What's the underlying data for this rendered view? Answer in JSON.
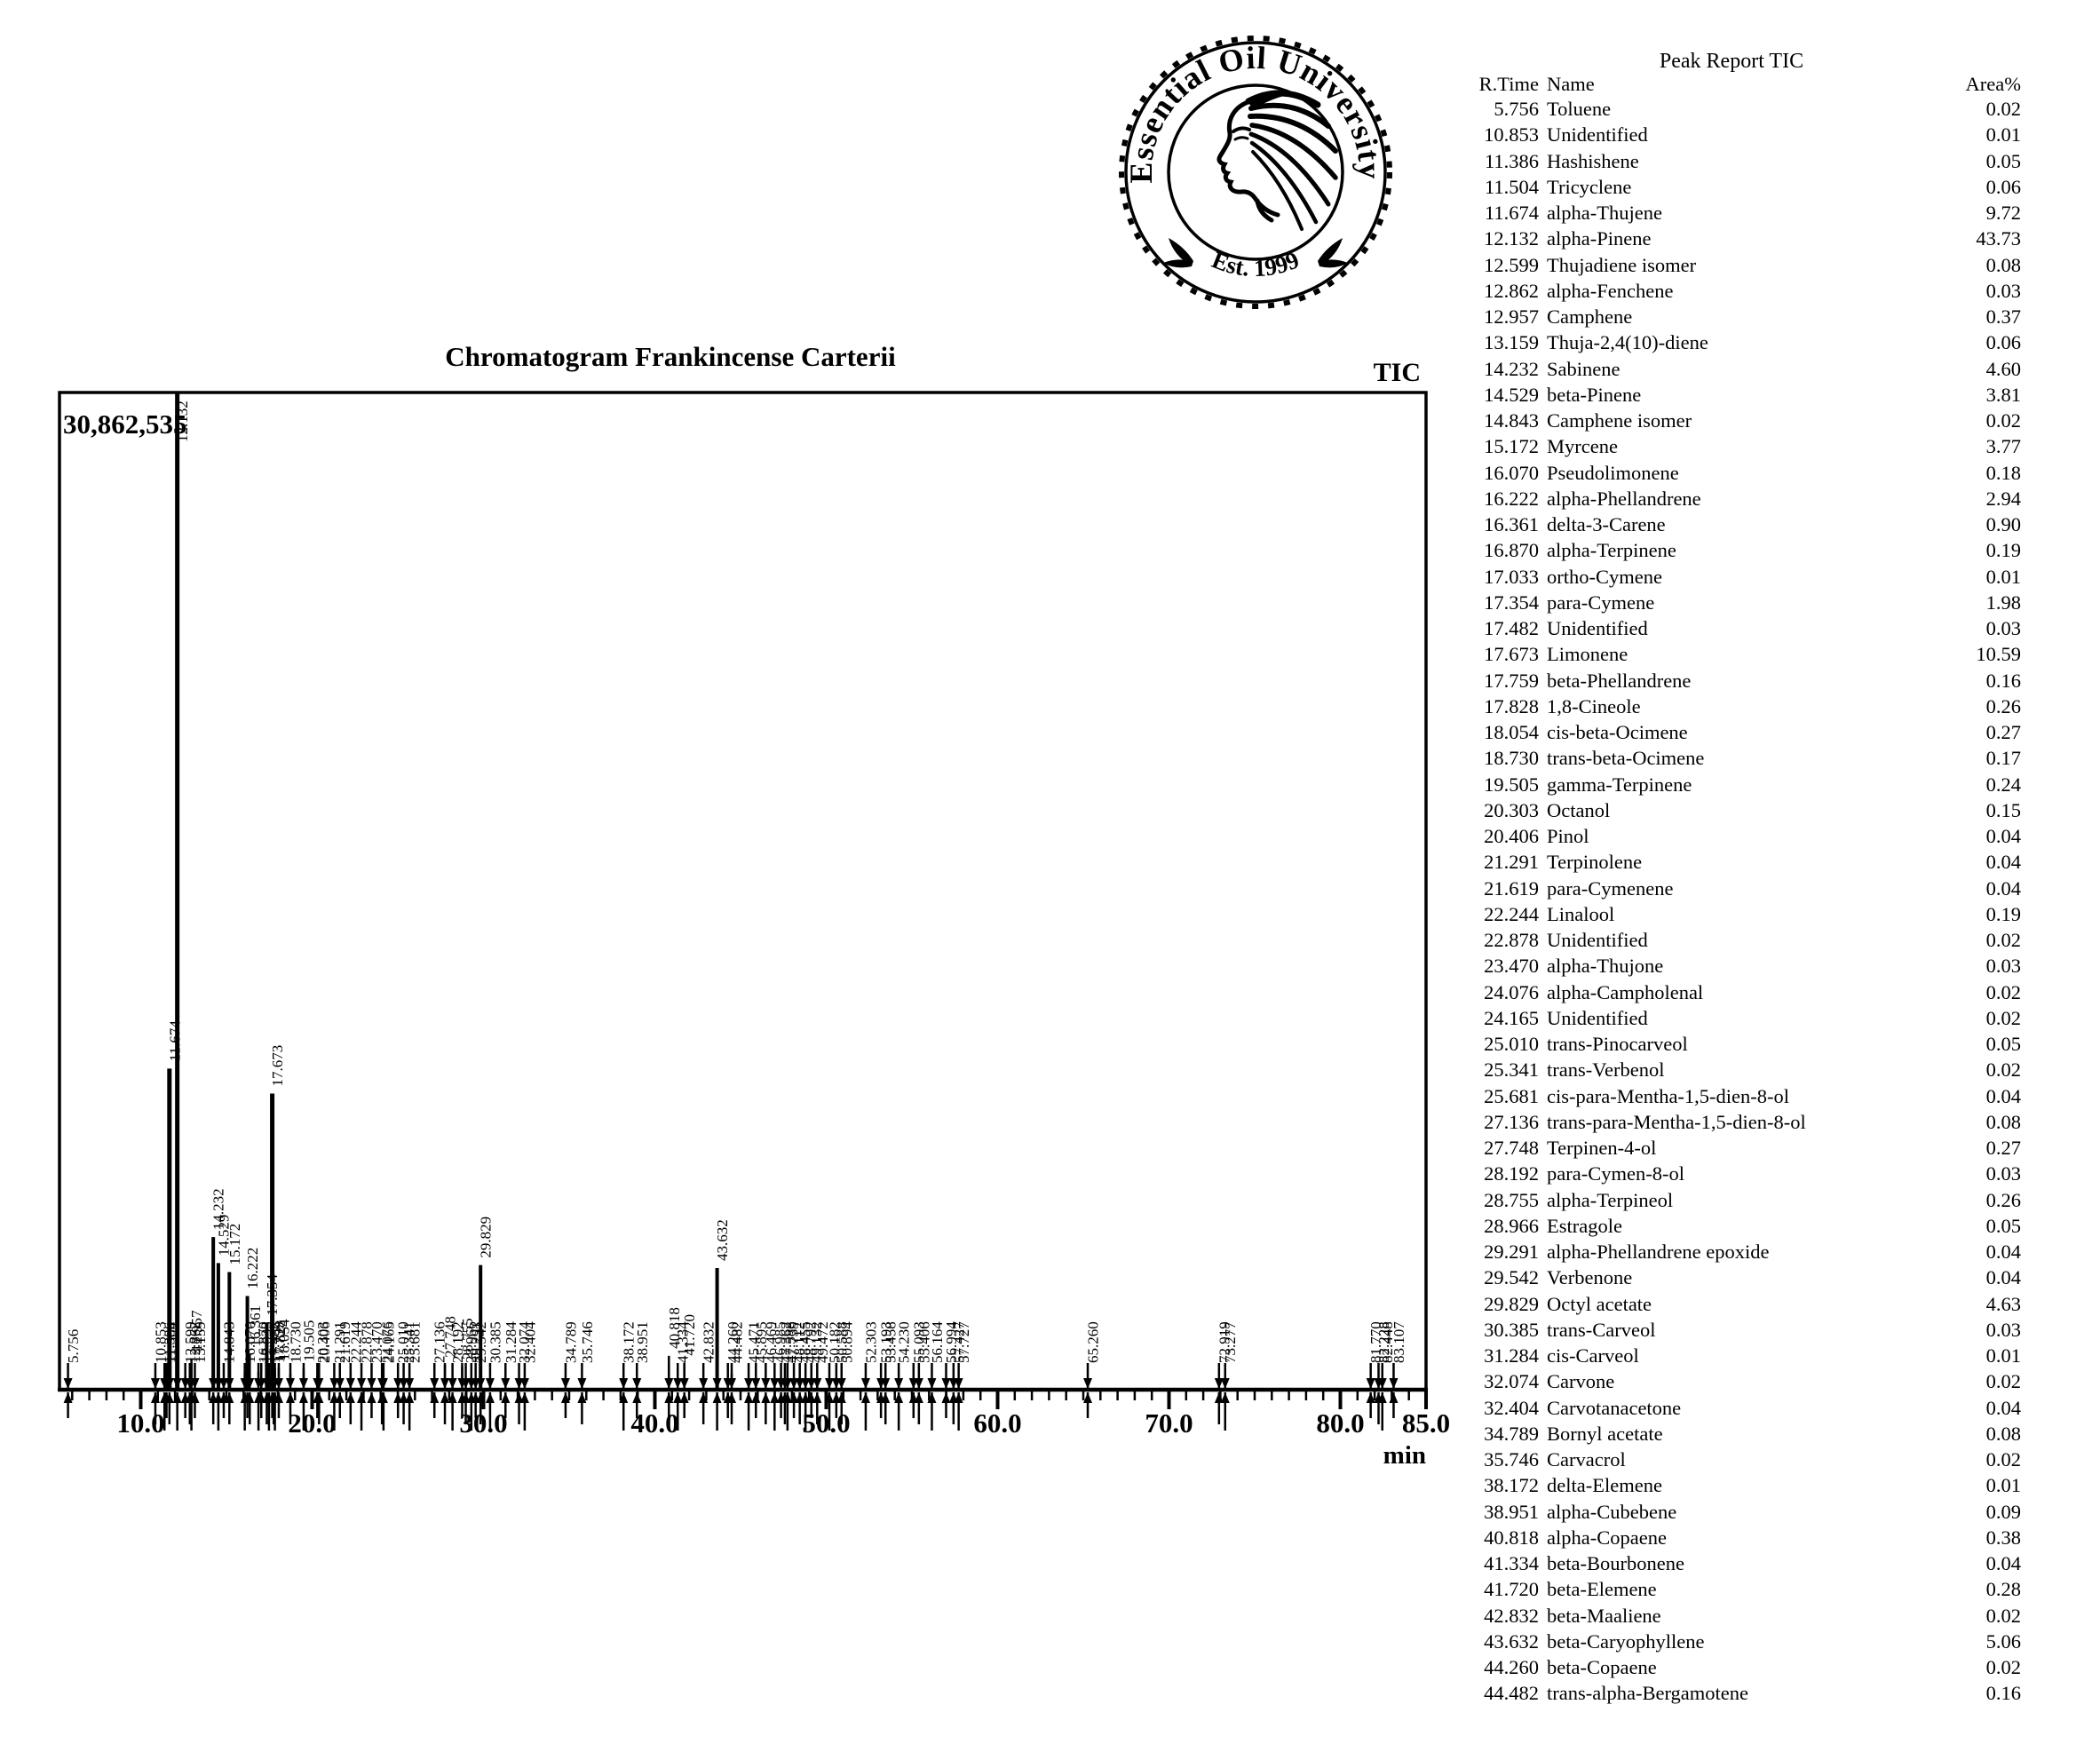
{
  "logo": {
    "ring_text": "Essential Oil University",
    "est_text": "Est. 1999"
  },
  "chart": {
    "title": "Chromatogram Frankincense Carterii",
    "series_label": "TIC"
  },
  "chart_data": {
    "type": "line",
    "title": "Chromatogram Frankincense Carterii",
    "series_label": "TIC",
    "xlabel": "min",
    "x_range": [
      5.26,
      85.0
    ],
    "x_major_ticks": [
      10,
      20,
      30,
      40,
      50,
      60,
      70,
      80,
      85
    ],
    "x_tick_labels": [
      "10.0",
      "20.0",
      "30.0",
      "40.0",
      "50.0",
      "60.0",
      "70.0",
      "80.0",
      "85.0"
    ],
    "y_max": 30862535,
    "y_max_label": "30,862,535",
    "grid": false,
    "peaks": [
      {
        "t": "5.756",
        "f": 0.007
      },
      {
        "t": "10.853",
        "f": 0.004
      },
      {
        "t": "11.386",
        "f": 0.009
      },
      {
        "t": "11.504",
        "f": 0.011
      },
      {
        "t": "11.674",
        "f": 0.322
      },
      {
        "t": "12.132",
        "f": 1.0
      },
      {
        "t": "12.599",
        "f": 0.013
      },
      {
        "t": "12.862",
        "f": 0.007
      },
      {
        "t": "12.957",
        "f": 0.031
      },
      {
        "t": "13.159",
        "f": 0.011
      },
      {
        "t": "14.232",
        "f": 0.153
      },
      {
        "t": "14.529",
        "f": 0.127
      },
      {
        "t": "14.843",
        "f": 0.006
      },
      {
        "t": "15.172",
        "f": 0.118
      },
      {
        "t": "16.070",
        "f": 0.018
      },
      {
        "t": "16.222",
        "f": 0.094
      },
      {
        "t": "16.361",
        "f": 0.036
      },
      {
        "t": "16.870",
        "f": 0.018
      },
      {
        "t": "17.033",
        "f": 0.005
      },
      {
        "t": "17.354",
        "f": 0.067
      },
      {
        "t": "17.482",
        "f": 0.007
      },
      {
        "t": "17.673",
        "f": 0.297
      },
      {
        "t": "17.759",
        "f": 0.016
      },
      {
        "t": "17.828",
        "f": 0.021
      },
      {
        "t": "18.054",
        "f": 0.022
      },
      {
        "t": "18.730",
        "f": 0.016
      },
      {
        "t": "19.505",
        "f": 0.021
      },
      {
        "t": "20.303",
        "f": 0.014
      },
      {
        "t": "20.406",
        "f": 0.007
      },
      {
        "t": "21.291",
        "f": 0.007
      },
      {
        "t": "21.619",
        "f": 0.007
      },
      {
        "t": "22.244",
        "f": 0.017
      },
      {
        "t": "22.878",
        "f": 0.005
      },
      {
        "t": "23.470",
        "f": 0.007
      },
      {
        "t": "24.076",
        "f": 0.005
      },
      {
        "t": "24.165",
        "f": 0.005
      },
      {
        "t": "25.010",
        "f": 0.009
      },
      {
        "t": "25.341",
        "f": 0.005
      },
      {
        "t": "25.681",
        "f": 0.007
      },
      {
        "t": "27.136",
        "f": 0.011
      },
      {
        "t": "27.748",
        "f": 0.025
      },
      {
        "t": "28.192",
        "f": 0.007
      },
      {
        "t": "28.755",
        "f": 0.023
      },
      {
        "t": "28.966",
        "f": 0.009
      },
      {
        "t": "29.291",
        "f": 0.007
      },
      {
        "t": "29.542",
        "f": 0.007
      },
      {
        "t": "29.829",
        "f": 0.125
      },
      {
        "t": "30.385",
        "f": 0.007
      },
      {
        "t": "31.284",
        "f": 0.004
      },
      {
        "t": "32.074",
        "f": 0.005
      },
      {
        "t": "32.404",
        "f": 0.007
      },
      {
        "t": "34.789",
        "f": 0.011
      },
      {
        "t": "35.746",
        "f": 0.007
      },
      {
        "t": "38.172",
        "f": 0.004
      },
      {
        "t": "38.951",
        "f": 0.012
      },
      {
        "t": "40.818",
        "f": 0.034
      },
      {
        "t": "41.334",
        "f": 0.007
      },
      {
        "t": "41.720",
        "f": 0.027
      },
      {
        "t": "42.832",
        "f": 0.005
      },
      {
        "t": "43.632",
        "f": 0.122
      },
      {
        "t": "44.260",
        "f": 0.007
      },
      {
        "t": "44.482",
        "f": 0.016
      },
      {
        "t": "45.471",
        "f": 0.009
      },
      {
        "t": "45.895",
        "f": 0.007
      },
      {
        "t": "46.469",
        "f": 0.007
      },
      {
        "t": "46.985",
        "f": 0.009
      },
      {
        "t": "47.362",
        "f": 0.01
      },
      {
        "t": "47.588",
        "f": 0.007
      },
      {
        "t": "47.739",
        "f": 0.009
      },
      {
        "t": "48.112",
        "f": 0.007
      },
      {
        "t": "48.455",
        "f": 0.009
      },
      {
        "t": "48.792",
        "f": 0.007
      },
      {
        "t": "49.132",
        "f": 0.008
      },
      {
        "t": "49.472",
        "f": 0.007
      },
      {
        "t": "50.182",
        "f": 0.007
      },
      {
        "t": "50.588",
        "f": 0.008
      },
      {
        "t": "50.894",
        "f": 0.007
      },
      {
        "t": "52.303",
        "f": 0.007
      },
      {
        "t": "53.193",
        "f": 0.007
      },
      {
        "t": "53.458",
        "f": 0.007
      },
      {
        "t": "54.230",
        "f": 0.007
      },
      {
        "t": "55.093",
        "f": 0.007
      },
      {
        "t": "55.406",
        "f": 0.007
      },
      {
        "t": "56.164",
        "f": 0.007
      },
      {
        "t": "56.994",
        "f": 0.007
      },
      {
        "t": "57.427",
        "f": 0.008
      },
      {
        "t": "57.727",
        "f": 0.007
      },
      {
        "t": "65.260",
        "f": 0.009
      },
      {
        "t": "72.919",
        "f": 0.011
      },
      {
        "t": "73.277",
        "f": 0.007
      },
      {
        "t": "81.770",
        "f": 0.008
      },
      {
        "t": "82.228",
        "f": 0.01
      },
      {
        "t": "82.448",
        "f": 0.007
      },
      {
        "t": "83.107",
        "f": 0.007
      }
    ]
  },
  "report": {
    "title": "Peak Report TIC",
    "columns": [
      "R.Time",
      "Name",
      "Area%"
    ],
    "rows": [
      [
        "5.756",
        "Toluene",
        "0.02"
      ],
      [
        "10.853",
        "Unidentified",
        "0.01"
      ],
      [
        "11.386",
        "Hashishene",
        "0.05"
      ],
      [
        "11.504",
        "Tricyclene",
        "0.06"
      ],
      [
        "11.674",
        "alpha-Thujene",
        "9.72"
      ],
      [
        "12.132",
        "alpha-Pinene",
        "43.73"
      ],
      [
        "12.599",
        "Thujadiene isomer",
        "0.08"
      ],
      [
        "12.862",
        "alpha-Fenchene",
        "0.03"
      ],
      [
        "12.957",
        "Camphene",
        "0.37"
      ],
      [
        "13.159",
        "Thuja-2,4(10)-diene",
        "0.06"
      ],
      [
        "14.232",
        "Sabinene",
        "4.60"
      ],
      [
        "14.529",
        "beta-Pinene",
        "3.81"
      ],
      [
        "14.843",
        "Camphene isomer",
        "0.02"
      ],
      [
        "15.172",
        "Myrcene",
        "3.77"
      ],
      [
        "16.070",
        "Pseudolimonene",
        "0.18"
      ],
      [
        "16.222",
        "alpha-Phellandrene",
        "2.94"
      ],
      [
        "16.361",
        "delta-3-Carene",
        "0.90"
      ],
      [
        "16.870",
        "alpha-Terpinene",
        "0.19"
      ],
      [
        "17.033",
        "ortho-Cymene",
        "0.01"
      ],
      [
        "17.354",
        "para-Cymene",
        "1.98"
      ],
      [
        "17.482",
        "Unidentified",
        "0.03"
      ],
      [
        "17.673",
        "Limonene",
        "10.59"
      ],
      [
        "17.759",
        "beta-Phellandrene",
        "0.16"
      ],
      [
        "17.828",
        "1,8-Cineole",
        "0.26"
      ],
      [
        "18.054",
        "cis-beta-Ocimene",
        "0.27"
      ],
      [
        "18.730",
        "trans-beta-Ocimene",
        "0.17"
      ],
      [
        "19.505",
        "gamma-Terpinene",
        "0.24"
      ],
      [
        "20.303",
        "Octanol",
        "0.15"
      ],
      [
        "20.406",
        "Pinol",
        "0.04"
      ],
      [
        "21.291",
        "Terpinolene",
        "0.04"
      ],
      [
        "21.619",
        "para-Cymenene",
        "0.04"
      ],
      [
        "22.244",
        "Linalool",
        "0.19"
      ],
      [
        "22.878",
        "Unidentified",
        "0.02"
      ],
      [
        "23.470",
        "alpha-Thujone",
        "0.03"
      ],
      [
        "24.076",
        "alpha-Campholenal",
        "0.02"
      ],
      [
        "24.165",
        "Unidentified",
        "0.02"
      ],
      [
        "25.010",
        "trans-Pinocarveol",
        "0.05"
      ],
      [
        "25.341",
        "trans-Verbenol",
        "0.02"
      ],
      [
        "25.681",
        "cis-para-Mentha-1,5-dien-8-ol",
        "0.04"
      ],
      [
        "27.136",
        "trans-para-Mentha-1,5-dien-8-ol",
        "0.08"
      ],
      [
        "27.748",
        "Terpinen-4-ol",
        "0.27"
      ],
      [
        "28.192",
        "para-Cymen-8-ol",
        "0.03"
      ],
      [
        "28.755",
        "alpha-Terpineol",
        "0.26"
      ],
      [
        "28.966",
        "Estragole",
        "0.05"
      ],
      [
        "29.291",
        "alpha-Phellandrene epoxide",
        "0.04"
      ],
      [
        "29.542",
        "Verbenone",
        "0.04"
      ],
      [
        "29.829",
        "Octyl acetate",
        "4.63"
      ],
      [
        "30.385",
        "trans-Carveol",
        "0.03"
      ],
      [
        "31.284",
        "cis-Carveol",
        "0.01"
      ],
      [
        "32.074",
        "Carvone",
        "0.02"
      ],
      [
        "32.404",
        "Carvotanacetone",
        "0.04"
      ],
      [
        "34.789",
        "Bornyl acetate",
        "0.08"
      ],
      [
        "35.746",
        "Carvacrol",
        "0.02"
      ],
      [
        "38.172",
        "delta-Elemene",
        "0.01"
      ],
      [
        "38.951",
        "alpha-Cubebene",
        "0.09"
      ],
      [
        "40.818",
        "alpha-Copaene",
        "0.38"
      ],
      [
        "41.334",
        "beta-Bourbonene",
        "0.04"
      ],
      [
        "41.720",
        "beta-Elemene",
        "0.28"
      ],
      [
        "42.832",
        "beta-Maaliene",
        "0.02"
      ],
      [
        "43.632",
        "beta-Caryophyllene",
        "5.06"
      ],
      [
        "44.260",
        "beta-Copaene",
        "0.02"
      ],
      [
        "44.482",
        "trans-alpha-Bergamotene",
        "0.16"
      ]
    ]
  }
}
